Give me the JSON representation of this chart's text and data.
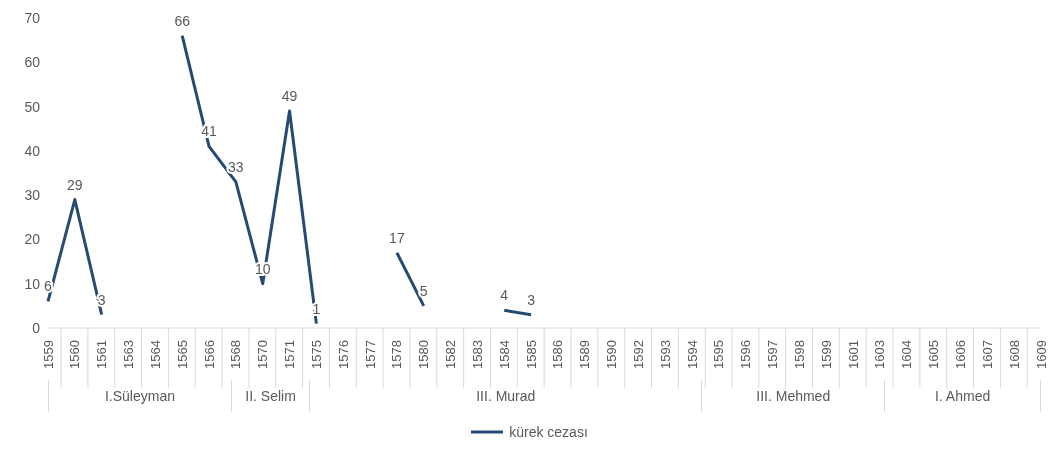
{
  "chart_data": {
    "type": "line",
    "categories": [
      "1559",
      "1560",
      "1561",
      "1563",
      "1564",
      "1565",
      "1566",
      "1568",
      "1570",
      "1571",
      "1575",
      "1576",
      "1577",
      "1578",
      "1580",
      "1582",
      "1583",
      "1584",
      "1585",
      "1586",
      "1589",
      "1590",
      "1592",
      "1593",
      "1594",
      "1595",
      "1596",
      "1597",
      "1598",
      "1599",
      "1601",
      "1603",
      "1604",
      "1605",
      "1606",
      "1607",
      "1608",
      "1609"
    ],
    "series": [
      {
        "name": "kürek cezası",
        "color": "#264b73",
        "values": [
          6,
          29,
          3,
          null,
          null,
          66,
          41,
          33,
          10,
          49,
          1,
          null,
          null,
          17,
          5,
          null,
          null,
          4,
          3,
          null,
          null,
          null,
          null,
          null,
          null,
          null,
          null,
          null,
          null,
          null,
          null,
          null,
          null,
          null,
          null,
          null,
          null,
          null
        ]
      }
    ],
    "annotations": [
      "I.Süleyman",
      "II. Selim",
      "III. Murad",
      "III. Mehmed",
      "I. Ahmed"
    ],
    "ylim": [
      0,
      70
    ],
    "yticks": [
      0,
      10,
      20,
      30,
      40,
      50,
      60,
      70
    ],
    "grid": false,
    "legend": "bottom",
    "marker": "none",
    "line_style": "solid",
    "data_labels": true
  }
}
